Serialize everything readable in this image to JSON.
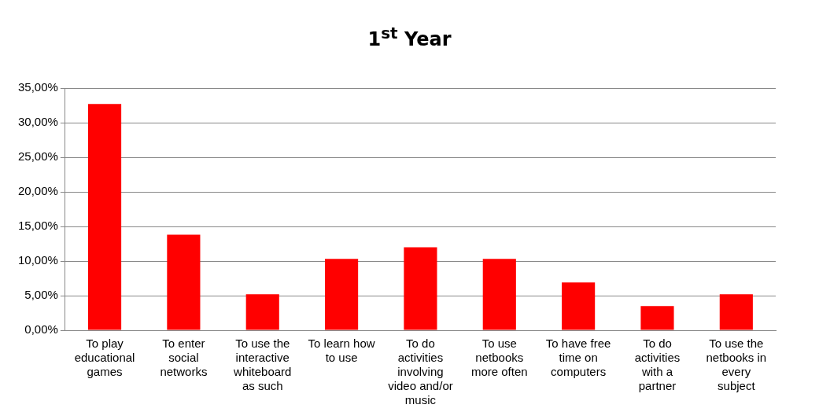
{
  "chart_data": {
    "type": "bar",
    "title": "1$^{st}$ Year",
    "categories": [
      "To play educational games",
      "To enter social networks",
      "To use the interactive whiteboard as such",
      "To learn how to use",
      "To do activities involving video and/or music",
      "To use netbooks more often",
      "To have free time on computers",
      "To do activities with a partner",
      "To use the netbooks in every subject"
    ],
    "values": [
      32.7,
      13.8,
      5.2,
      10.3,
      12.0,
      10.3,
      6.9,
      3.5,
      5.2
    ],
    "color": "#ff0000",
    "ylim": [
      0,
      35
    ],
    "yticks": [
      {
        "value": 0,
        "label": "0,00%"
      },
      {
        "value": 5,
        "label": "5,00%"
      },
      {
        "value": 10,
        "label": "10,00%"
      },
      {
        "value": 15,
        "label": "15,00%"
      },
      {
        "value": 20,
        "label": "20,00%"
      },
      {
        "value": 25,
        "label": "25,00%"
      },
      {
        "value": 30,
        "label": "30,00%"
      },
      {
        "value": 35,
        "label": "35,00%"
      }
    ],
    "grid": "y",
    "legend": false
  }
}
